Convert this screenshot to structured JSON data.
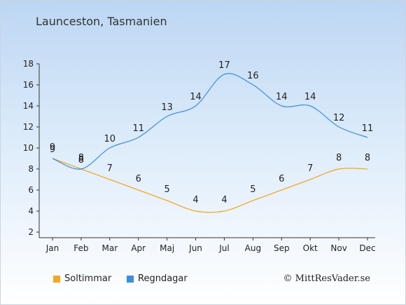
{
  "title": "Launceston, Tasmanien",
  "copyright": "© MittResVader.se",
  "colors": {
    "sun": "#f5a623",
    "rain": "#3a8fdc"
  },
  "chart_data": {
    "type": "line",
    "categories": [
      "Jan",
      "Feb",
      "Mar",
      "Apr",
      "Maj",
      "Jun",
      "Jul",
      "Aug",
      "Sep",
      "Okt",
      "Nov",
      "Dec"
    ],
    "series": [
      {
        "name": "Soltimmar",
        "values": [
          9,
          8,
          7,
          6,
          5,
          4,
          4,
          5,
          6,
          7,
          8,
          8
        ]
      },
      {
        "name": "Regndagar",
        "values": [
          9,
          8,
          10,
          11,
          13,
          14,
          17,
          16,
          14,
          14,
          12,
          11
        ]
      }
    ],
    "yticks": [
      2,
      4,
      6,
      8,
      10,
      12,
      14,
      16,
      18
    ],
    "ylim": [
      2,
      18
    ],
    "legend_position": "bottom-left"
  }
}
